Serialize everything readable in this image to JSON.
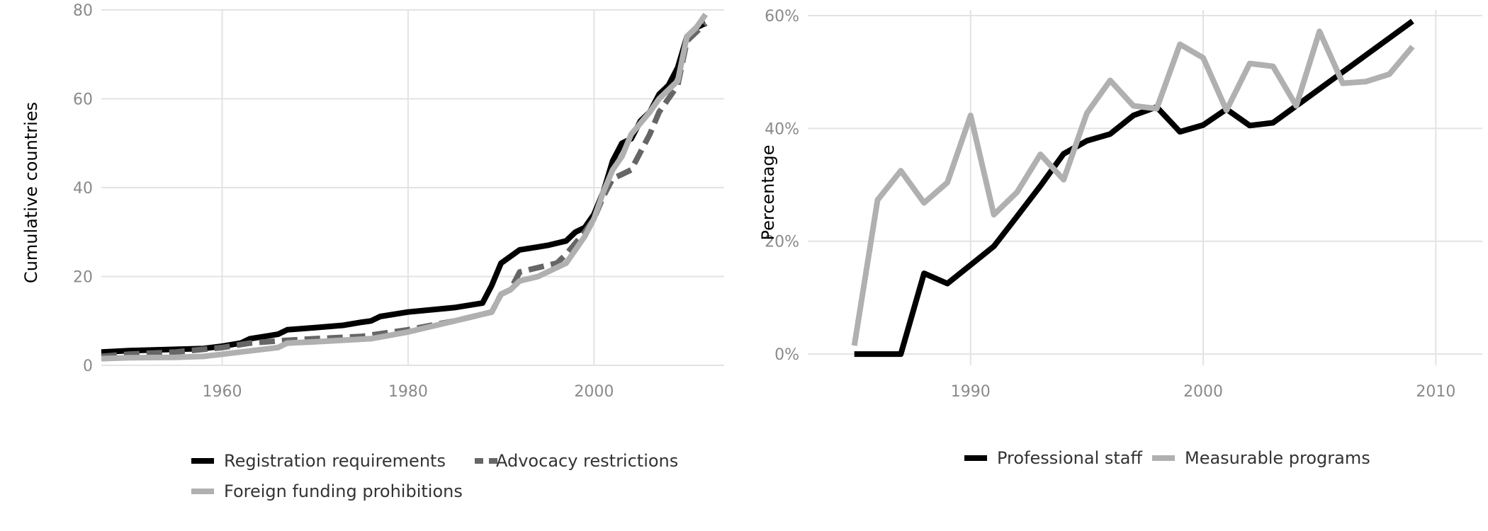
{
  "chart_data": [
    {
      "type": "line",
      "ylabel": "Cumulative countries",
      "xlim": [
        1947,
        2014
      ],
      "ylim": [
        0,
        80
      ],
      "x_ticks": [
        1960,
        1980,
        2000
      ],
      "x_tick_labels": [
        "1960",
        "1980",
        "2000"
      ],
      "y_ticks": [
        0,
        20,
        40,
        60,
        80
      ],
      "y_tick_labels": [
        "0",
        "20",
        "40",
        "60",
        "80"
      ],
      "grid": true,
      "legend_position": "bottom",
      "series": [
        {
          "name": "Registration requirements",
          "color": "#000000",
          "dash": "solid",
          "points": [
            [
              1947,
              3
            ],
            [
              1950,
              3.3
            ],
            [
              1955,
              3.6
            ],
            [
              1958,
              3.8
            ],
            [
              1960,
              4.3
            ],
            [
              1962,
              5
            ],
            [
              1963,
              6
            ],
            [
              1966,
              7
            ],
            [
              1967,
              8
            ],
            [
              1970,
              8.5
            ],
            [
              1973,
              9
            ],
            [
              1975,
              9.7
            ],
            [
              1976,
              10
            ],
            [
              1977,
              11
            ],
            [
              1980,
              12
            ],
            [
              1985,
              13
            ],
            [
              1988,
              14
            ],
            [
              1989,
              18
            ],
            [
              1990,
              23
            ],
            [
              1992,
              26
            ],
            [
              1995,
              27
            ],
            [
              1997,
              28
            ],
            [
              1998,
              30
            ],
            [
              1999,
              31
            ],
            [
              2000,
              34
            ],
            [
              2001,
              39
            ],
            [
              2002,
              46
            ],
            [
              2003,
              50
            ],
            [
              2004,
              51
            ],
            [
              2005,
              55
            ],
            [
              2006,
              57
            ],
            [
              2007,
              61
            ],
            [
              2008,
              63
            ],
            [
              2009,
              67
            ],
            [
              2010,
              74
            ],
            [
              2011,
              76
            ],
            [
              2012,
              77
            ]
          ]
        },
        {
          "name": "Advocacy restrictions",
          "color": "#666666",
          "dash": "dashed",
          "points": [
            [
              1947,
              2
            ],
            [
              1950,
              2.5
            ],
            [
              1955,
              3
            ],
            [
              1960,
              4
            ],
            [
              1963,
              5
            ],
            [
              1966,
              5.5
            ],
            [
              1970,
              6
            ],
            [
              1975,
              6.5
            ],
            [
              1980,
              8
            ],
            [
              1985,
              10
            ],
            [
              1989,
              12
            ],
            [
              1990,
              16
            ],
            [
              1991,
              17
            ],
            [
              1992,
              21
            ],
            [
              1994,
              22
            ],
            [
              1996,
              23
            ],
            [
              1997,
              25
            ],
            [
              1999,
              30
            ],
            [
              2000,
              33
            ],
            [
              2001,
              38
            ],
            [
              2002,
              42
            ],
            [
              2003,
              43
            ],
            [
              2004,
              44
            ],
            [
              2005,
              48
            ],
            [
              2006,
              52
            ],
            [
              2007,
              57
            ],
            [
              2008,
              60
            ],
            [
              2009,
              63
            ],
            [
              2010,
              73
            ],
            [
              2011,
              75
            ],
            [
              2012,
              77
            ]
          ]
        },
        {
          "name": "Foreign funding prohibitions",
          "color": "#b0b0b0",
          "dash": "solid",
          "points": [
            [
              1947,
              1.5
            ],
            [
              1950,
              1.7
            ],
            [
              1955,
              1.8
            ],
            [
              1958,
              2
            ],
            [
              1960,
              2.5
            ],
            [
              1966,
              4
            ],
            [
              1967,
              5
            ],
            [
              1970,
              5.3
            ],
            [
              1976,
              6
            ],
            [
              1980,
              7.5
            ],
            [
              1985,
              10
            ],
            [
              1989,
              12
            ],
            [
              1990,
              16
            ],
            [
              1991,
              17
            ],
            [
              1992,
              19
            ],
            [
              1994,
              20
            ],
            [
              1996,
              22
            ],
            [
              1997,
              23
            ],
            [
              1999,
              29
            ],
            [
              2000,
              33
            ],
            [
              2001,
              39
            ],
            [
              2002,
              44
            ],
            [
              2003,
              47
            ],
            [
              2004,
              52
            ],
            [
              2006,
              57
            ],
            [
              2007,
              60
            ],
            [
              2008,
              62
            ],
            [
              2009,
              64
            ],
            [
              2010,
              74
            ],
            [
              2011,
              76
            ],
            [
              2012,
              79
            ]
          ]
        }
      ]
    },
    {
      "type": "line",
      "ylabel": "Percentage",
      "xlim": [
        1983,
        2012
      ],
      "ylim": [
        -2,
        61
      ],
      "x_ticks": [
        1990,
        2000,
        2010
      ],
      "x_tick_labels": [
        "1990",
        "2000",
        "2010"
      ],
      "y_ticks": [
        0,
        20,
        40,
        60
      ],
      "y_tick_labels": [
        "0%",
        "20%",
        "40%",
        "60%"
      ],
      "grid": true,
      "legend_position": "bottom",
      "series": [
        {
          "name": "Professional staff",
          "color": "#000000",
          "dash": "solid",
          "points": [
            [
              1985,
              0
            ],
            [
              1986,
              0
            ],
            [
              1987,
              0
            ],
            [
              1988,
              14.3
            ],
            [
              1989,
              12.5
            ],
            [
              1990,
              15.8
            ],
            [
              1991,
              19.1
            ],
            [
              1992,
              24.4
            ],
            [
              1993,
              29.8
            ],
            [
              1994,
              35.5
            ],
            [
              1995,
              37.8
            ],
            [
              1996,
              39
            ],
            [
              1997,
              42.3
            ],
            [
              1998,
              43.8
            ],
            [
              1999,
              39.4
            ],
            [
              2000,
              40.6
            ],
            [
              2001,
              43.4
            ],
            [
              2002,
              40.5
            ],
            [
              2003,
              41
            ],
            [
              2004,
              44
            ],
            [
              2005,
              47
            ],
            [
              2006,
              50
            ],
            [
              2007,
              53
            ],
            [
              2008,
              56
            ],
            [
              2009,
              59
            ]
          ]
        },
        {
          "name": "Measurable programs",
          "color": "#b0b0b0",
          "dash": "solid",
          "points": [
            [
              1985,
              1.5
            ],
            [
              1986,
              27.3
            ],
            [
              1987,
              32.5
            ],
            [
              1988,
              26.8
            ],
            [
              1989,
              30.4
            ],
            [
              1990,
              42.3
            ],
            [
              1991,
              24.7
            ],
            [
              1992,
              28.7
            ],
            [
              1993,
              35.4
            ],
            [
              1994,
              30.9
            ],
            [
              1995,
              42.7
            ],
            [
              1996,
              48.5
            ],
            [
              1997,
              44
            ],
            [
              1998,
              43.5
            ],
            [
              1999,
              54.9
            ],
            [
              2000,
              52.5
            ],
            [
              2001,
              43.2
            ],
            [
              2002,
              51.5
            ],
            [
              2003,
              51
            ],
            [
              2004,
              44
            ],
            [
              2005,
              57.2
            ],
            [
              2006,
              48
            ],
            [
              2007,
              48.3
            ],
            [
              2008,
              49.6
            ],
            [
              2009,
              54.5
            ]
          ]
        }
      ]
    }
  ]
}
